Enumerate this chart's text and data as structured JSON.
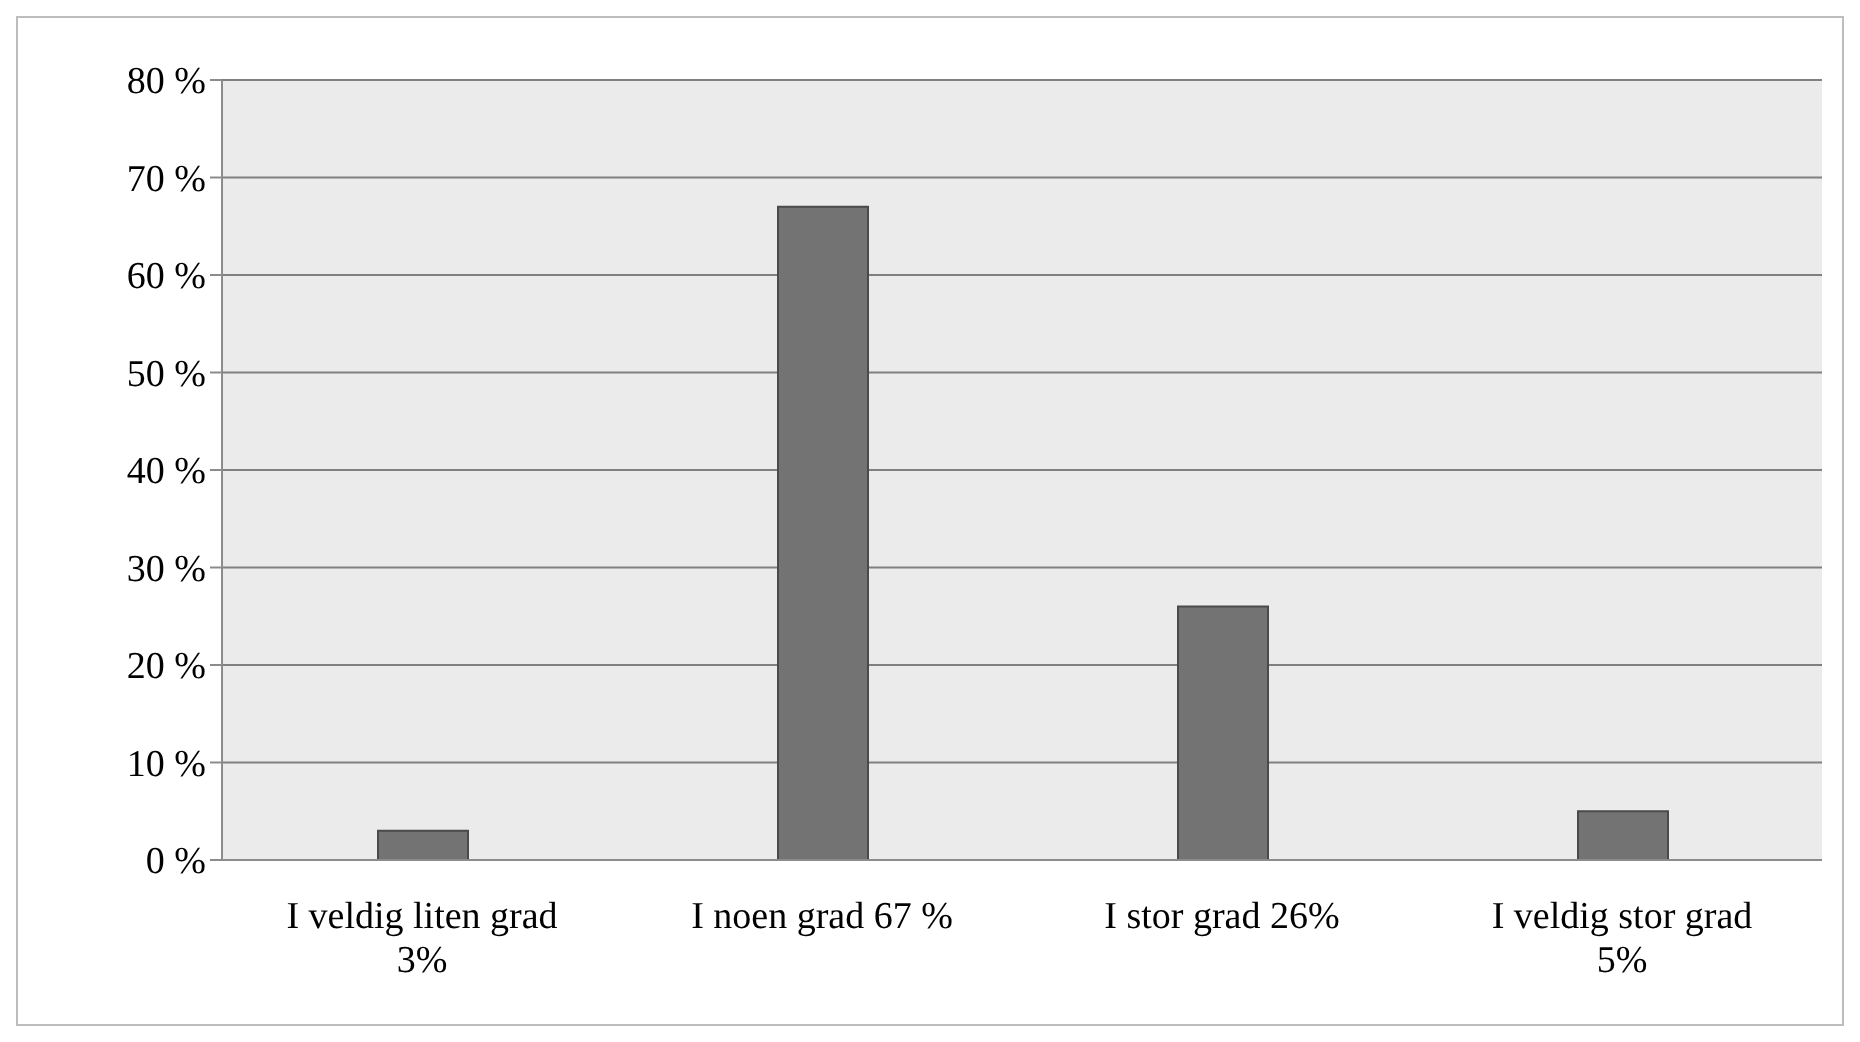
{
  "chart_data": {
    "type": "bar",
    "categories": [
      "I veldig liten grad 3%",
      "I noen grad 67 %",
      "I stor grad 26%",
      "I veldig stor grad 5%"
    ],
    "values": [
      3,
      67,
      26,
      5
    ],
    "color": "#737373",
    "ylim": [
      0,
      80
    ],
    "yticks": [
      {
        "value": 0,
        "label": "0 %"
      },
      {
        "value": 10,
        "label": "10 %"
      },
      {
        "value": 20,
        "label": "20 %"
      },
      {
        "value": 30,
        "label": "30 %"
      },
      {
        "value": 40,
        "label": "40 %"
      },
      {
        "value": 50,
        "label": "50 %"
      },
      {
        "value": 60,
        "label": "60 %"
      },
      {
        "value": 70,
        "label": "70 %"
      },
      {
        "value": 80,
        "label": "80 %"
      }
    ],
    "grid": "y",
    "legend": false
  }
}
